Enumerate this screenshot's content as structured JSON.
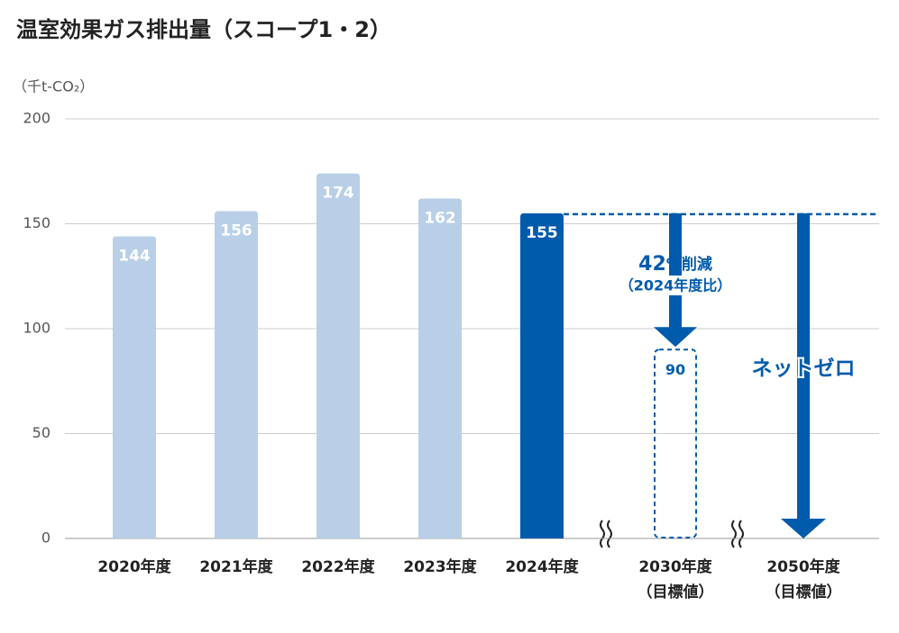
{
  "chart_data": {
    "type": "bar",
    "title": "温室効果ガス排出量（スコープ1・2）",
    "y_unit": "（千t-CO₂）",
    "categories": [
      "2020年度",
      "2021年度",
      "2022年度",
      "2023年度",
      "2024年度",
      "2030年度",
      "2050年度"
    ],
    "category_notes": [
      null,
      null,
      null,
      null,
      null,
      "（目標値）",
      "（目標値）"
    ],
    "values": [
      144,
      156,
      174,
      162,
      155,
      90,
      0
    ],
    "bar_kinds": [
      "bar",
      "bar",
      "bar",
      "bar",
      "bar",
      "target",
      "arrow"
    ],
    "colors": [
      "#b8cfe7",
      "#b8cfe7",
      "#b8cfe7",
      "#b8cfe7",
      "#005bac",
      "#005bac",
      "#005bac"
    ],
    "ylim": [
      0,
      200
    ],
    "yticks": [
      0,
      50,
      100,
      150,
      200
    ],
    "grid": true,
    "annotations": {
      "reduction_value": "42",
      "reduction_text": "%削減",
      "reduction_note": "（2024年度比）",
      "net_zero": "ネットゼロ"
    }
  }
}
